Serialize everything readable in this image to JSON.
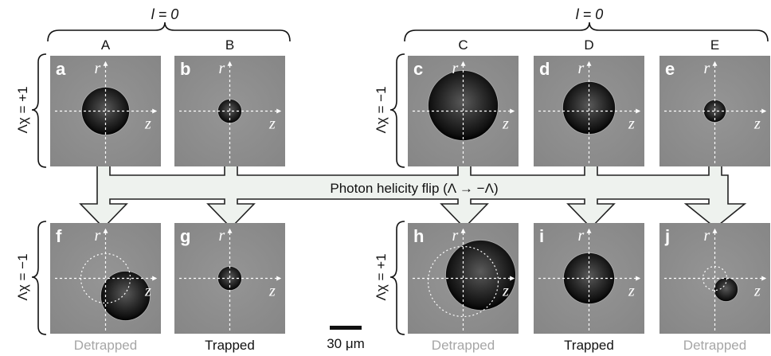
{
  "groups": {
    "left_l": "l = 0",
    "right_l": "l = 0"
  },
  "columns": [
    "A",
    "B",
    "C",
    "D",
    "E"
  ],
  "row_labels": {
    "top_left": "Λχ = +1",
    "top_right": "Λχ = −1",
    "bottom_left": "Λχ = −1",
    "bottom_right": "Λχ = +1"
  },
  "panels": {
    "top": [
      "a",
      "b",
      "c",
      "d",
      "e"
    ],
    "bottom": [
      "f",
      "g",
      "h",
      "i",
      "j"
    ]
  },
  "axes": {
    "r": "r",
    "z": "z"
  },
  "flip_label": "Photon helicity flip (Λ → −Λ)",
  "status": [
    "Detrapped",
    "Trapped",
    "Detrapped",
    "Trapped",
    "Detrapped"
  ],
  "scale_bar": "30 μm",
  "colors": {
    "panel_bg": "#8c8c8c",
    "arrow_fill": "#eef2ee",
    "detrapped_text": "#a6a6a6"
  }
}
